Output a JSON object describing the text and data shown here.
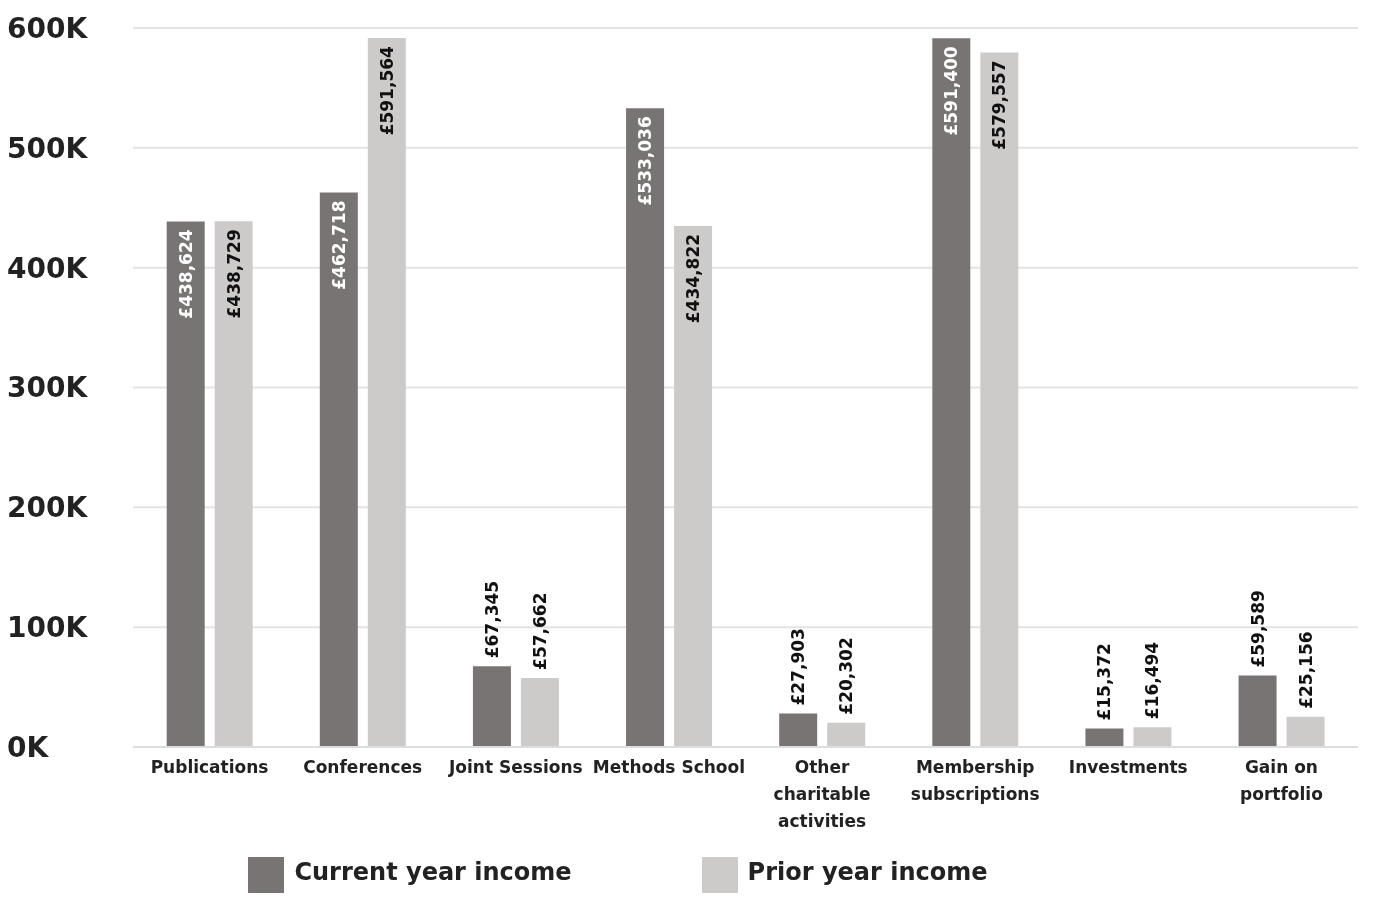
{
  "chart_data": {
    "type": "bar",
    "categories": [
      "Publications",
      "Conferences",
      "Joint Sessions",
      "Methods School",
      "Other charitable activities",
      "Membership subscriptions",
      "Investments",
      "Gain on portfolio"
    ],
    "series": [
      {
        "name": "Current year income",
        "color": "#797474",
        "values": [
          438624,
          462718,
          67345,
          533036,
          27903,
          591400,
          15372,
          59589
        ],
        "value_labels": [
          "£438,624",
          "£462,718",
          "£67,345",
          "£533,036",
          "£27,903",
          "£591,400",
          "£15,372",
          "£59,589"
        ]
      },
      {
        "name": "Prior year income",
        "color": "#cdcaca",
        "values": [
          438729,
          591564,
          57662,
          434822,
          20302,
          579557,
          16494,
          25156
        ],
        "value_labels": [
          "£438,729",
          "£591,564",
          "£57,662",
          "£434,822",
          "£20,302",
          "£579,557",
          "£16,494",
          "£25,156"
        ]
      }
    ],
    "ylim": [
      0,
      600000
    ],
    "yticks": [
      {
        "value": 0,
        "label": "0K"
      },
      {
        "value": 100000,
        "label": "100K"
      },
      {
        "value": 200000,
        "label": "200K"
      },
      {
        "value": 300000,
        "label": "300K"
      },
      {
        "value": 400000,
        "label": "400K"
      },
      {
        "value": 500000,
        "label": "500K"
      },
      {
        "value": 600000,
        "label": "600K"
      }
    ],
    "grid": "y",
    "legend": "bottom"
  }
}
